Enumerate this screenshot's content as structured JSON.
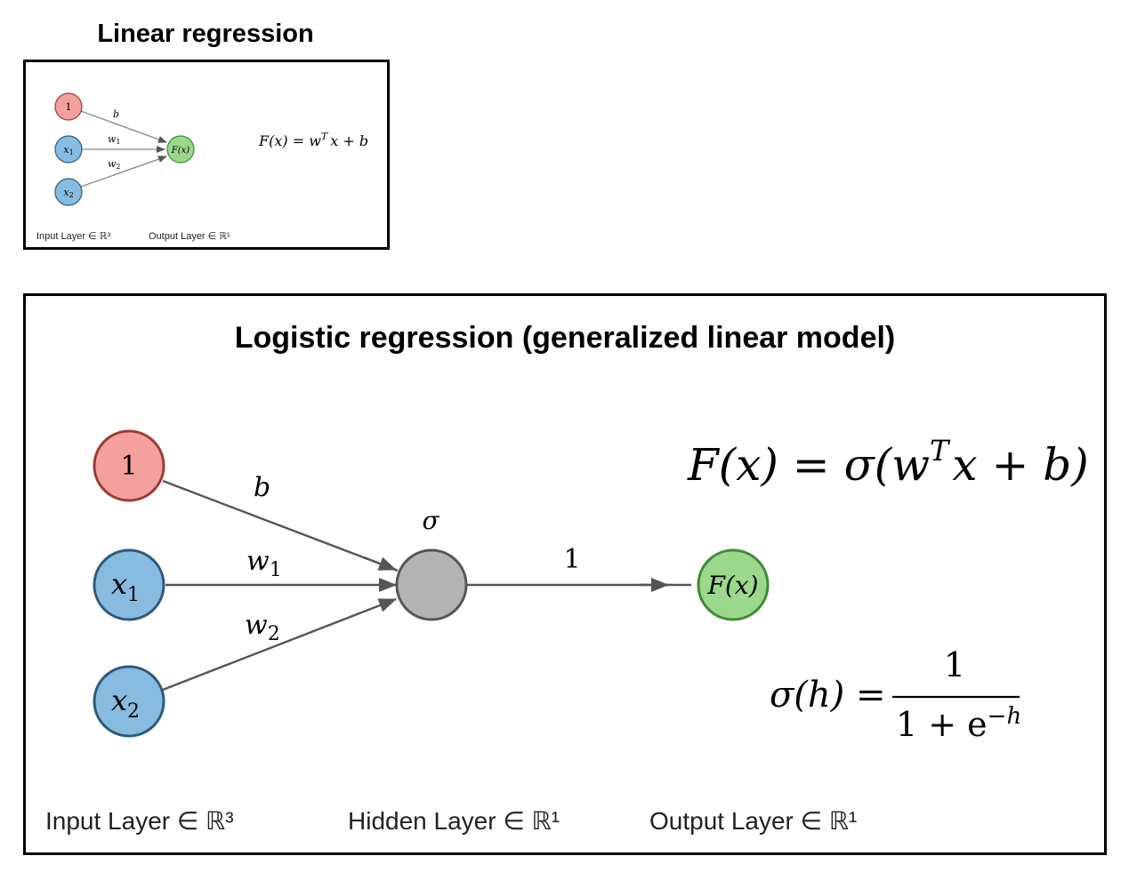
{
  "linear": {
    "title": "Linear regression",
    "nodes": {
      "bias": "1",
      "x1": "x",
      "x1_sub": "1",
      "x2": "x",
      "x2_sub": "2",
      "out": "F(x)"
    },
    "edges": {
      "b": "b",
      "w1": "w",
      "w1_sub": "1",
      "w2": "w",
      "w2_sub": "2"
    },
    "formula": {
      "lhs": "F(x) = w",
      "sup": "T",
      "rhs": "x + b"
    },
    "layers": {
      "input": "Input Layer ∈ ℝ³",
      "output": "Output Layer ∈ ℝ¹"
    }
  },
  "logistic": {
    "title": "Logistic regression (generalized linear model)",
    "nodes": {
      "bias": "1",
      "x1": "x",
      "x1_sub": "1",
      "x2": "x",
      "x2_sub": "2",
      "hidden_label": "σ",
      "out": "F(x)"
    },
    "edges": {
      "b": "b",
      "w1": "w",
      "w1_sub": "1",
      "w2": "w",
      "w2_sub": "2",
      "hidden_out": "1"
    },
    "formula": {
      "lhs": "F(x) = σ(w",
      "sup": "T",
      "rhs": "x + b)"
    },
    "sigmoid": {
      "lhs": "σ(h) =",
      "numerator": "1",
      "denominator": "1 + e",
      "exp": "−h"
    },
    "layers": {
      "input": "Input Layer ∈ ℝ³",
      "hidden": "Hidden Layer ∈ ℝ¹",
      "output": "Output Layer ∈ ℝ¹"
    }
  },
  "colors": {
    "bias": "#f4a09c",
    "bias_stroke": "#9b3b33",
    "input": "#88bbe0",
    "input_stroke": "#2d5a7a",
    "hidden": "#b3b3b3",
    "hidden_stroke": "#555555",
    "output": "#9ad88c",
    "output_stroke": "#3f8a35",
    "edge": "#555555"
  }
}
